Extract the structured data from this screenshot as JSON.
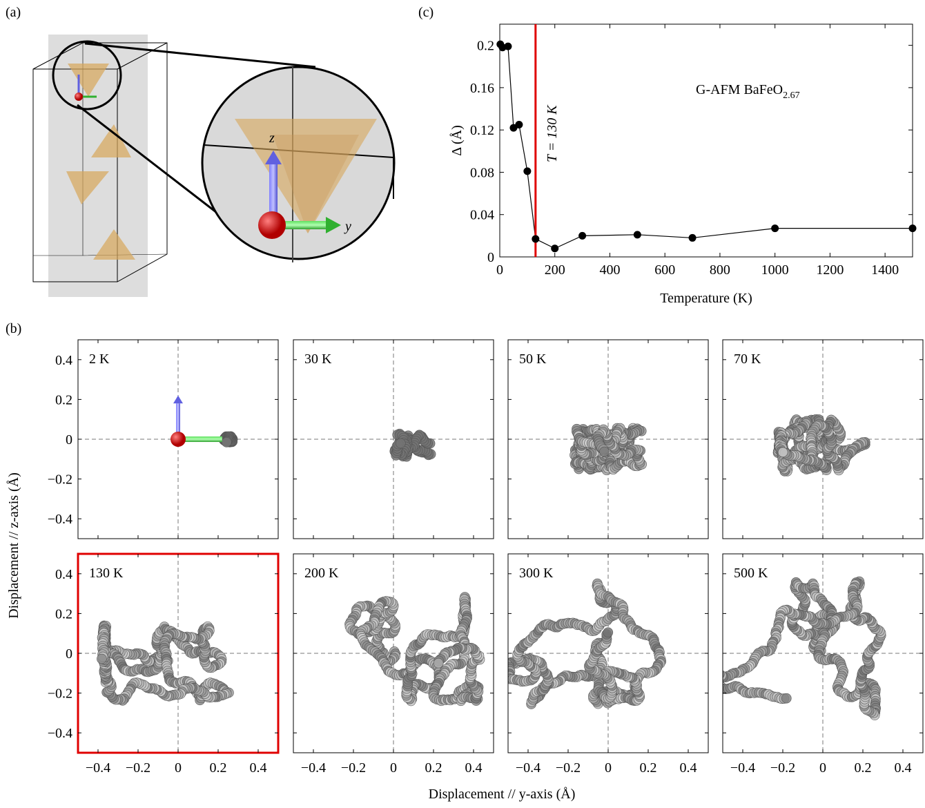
{
  "panel_labels": [
    "(a)",
    "(b)",
    "(c)"
  ],
  "inset_labels": [
    "z",
    "y"
  ],
  "chart_data": [
    {
      "type": "line",
      "xlabel": "Temperature (K)",
      "ylabel": "Δ (Å)",
      "x": [
        2,
        10,
        30,
        50,
        70,
        100,
        130,
        200,
        300,
        500,
        700,
        1000,
        1500
      ],
      "values": [
        0.201,
        0.198,
        0.199,
        0.122,
        0.125,
        0.081,
        0.017,
        0.008,
        0.02,
        0.021,
        0.018,
        0.027,
        0.027
      ],
      "color": "#000000",
      "xlim": [
        0,
        1500
      ],
      "ylim": [
        0,
        0.22
      ],
      "xticks": [
        0,
        200,
        400,
        600,
        800,
        1000,
        1200,
        1400
      ],
      "yticks": [
        0,
        0.04,
        0.08,
        0.12,
        0.16,
        0.2
      ],
      "vline": {
        "x": 130,
        "color": "#e00000",
        "label": "T = 130 K"
      },
      "annotation": {
        "text": "G-AFM BaFeO",
        "subscript": "2.67"
      }
    },
    {
      "type": "trajectory",
      "xlabel": "Displacement // y-axis (Å)",
      "ylabel": "Displacement // z-axis (Å)",
      "xlim": [
        -0.5,
        0.5
      ],
      "ylim": [
        -0.5,
        0.5
      ],
      "xticks": [
        {
          "value": -0.4,
          "label": "−0.4"
        },
        {
          "value": -0.2,
          "label": "−0.2"
        },
        0,
        0.2,
        0.4
      ],
      "yticks": [
        {
          "value": -0.4,
          "label": "−0.4"
        },
        {
          "value": -0.2,
          "label": "−0.2"
        },
        0,
        0.2,
        0.4
      ],
      "panels": [
        {
          "title": "2 K"
        },
        {
          "title": "30 K"
        },
        {
          "title": "50 K"
        },
        {
          "title": "70 K"
        },
        {
          "title": "130 K",
          "highlight_color": "#e00000"
        },
        {
          "title": "200 K"
        },
        {
          "title": "300 K"
        },
        {
          "title": "500 K"
        }
      ]
    }
  ]
}
